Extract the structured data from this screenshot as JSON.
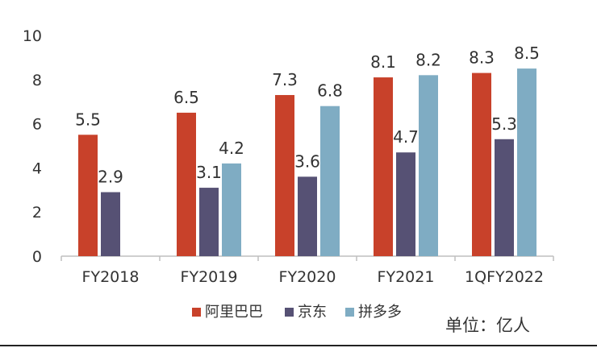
{
  "chart_data": {
    "type": "bar",
    "categories": [
      "FY2018",
      "FY2019",
      "FY2020",
      "FY2021",
      "1QFY2022"
    ],
    "series": [
      {
        "name": "阿里巴巴",
        "color": "#c8412a",
        "values": [
          5.5,
          6.5,
          7.3,
          8.1,
          8.3
        ]
      },
      {
        "name": "京东",
        "color": "#565174",
        "values": [
          2.9,
          3.1,
          3.6,
          4.7,
          5.3
        ]
      },
      {
        "name": "拼多多",
        "color": "#7facc3",
        "values": [
          null,
          4.2,
          6.8,
          8.2,
          8.5
        ]
      }
    ],
    "data_labels": [
      [
        "5.5",
        "6.5",
        "7.3",
        "8.1",
        "8.3"
      ],
      [
        "2.9",
        "3.1",
        "3.6",
        "4.7",
        "5.3"
      ],
      [
        "",
        "4.2",
        "6.8",
        "8.2",
        "8.5"
      ]
    ],
    "yticks": [
      "0",
      "2",
      "4",
      "6",
      "8",
      "10"
    ],
    "ylim": [
      0,
      10
    ],
    "grid": false,
    "legend_position": "bottom",
    "unit_note": "单位：亿人"
  }
}
